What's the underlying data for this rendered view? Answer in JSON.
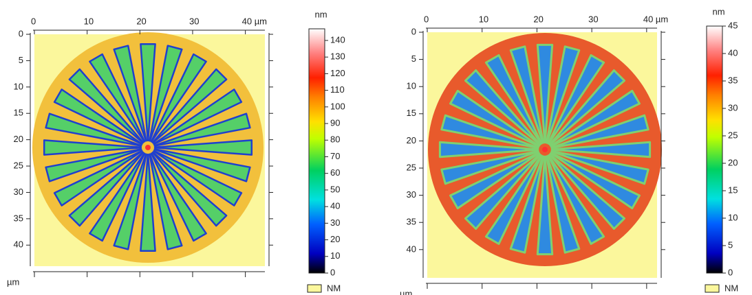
{
  "chart_data": [
    {
      "type": "heatmap",
      "axis_label": "µm",
      "xlim": [
        0,
        43.7
      ],
      "xticks": [
        0,
        10,
        20,
        30,
        {
          "value": 40,
          "label": "40 µm"
        }
      ],
      "ylim": [
        0,
        44
      ],
      "yticks": [
        0,
        5,
        10,
        15,
        20,
        25,
        30,
        35,
        40
      ],
      "colorbar": {
        "label": "nm",
        "lim": [
          0,
          147
        ],
        "ticks": [
          0,
          10,
          20,
          30,
          40,
          50,
          60,
          70,
          80,
          90,
          100,
          110,
          120,
          130,
          140
        ]
      },
      "legend": "NM"
    },
    {
      "type": "heatmap",
      "axis_label": "µm",
      "xlim": [
        0,
        41.9
      ],
      "xticks": [
        0,
        10,
        20,
        30,
        {
          "value": 40,
          "label": "40 µm"
        }
      ],
      "ylim": [
        0,
        45.2
      ],
      "yticks": [
        0,
        5,
        10,
        15,
        20,
        25,
        30,
        35,
        40
      ],
      "colorbar": {
        "label": "nm",
        "lim": [
          0,
          45
        ],
        "ticks": [
          0,
          5,
          10,
          15,
          20,
          25,
          30,
          35,
          40,
          45
        ]
      },
      "legend": "NM"
    }
  ]
}
